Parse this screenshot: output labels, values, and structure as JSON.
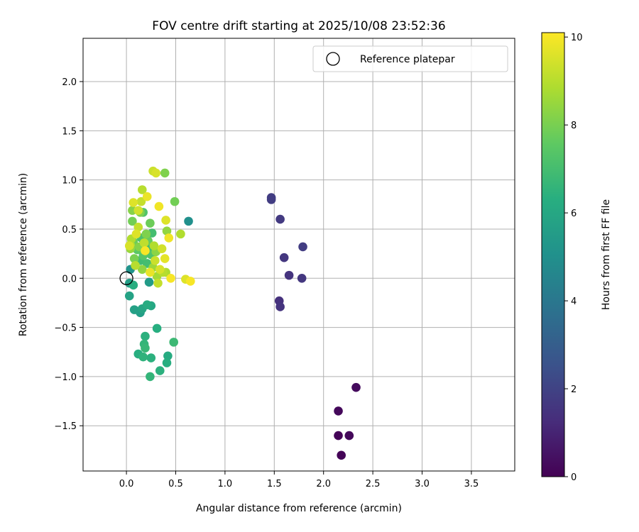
{
  "chart_data": {
    "type": "scatter",
    "title": "FOV centre drift starting at 2025/10/08 23:52:36",
    "xlabel": "Angular distance from reference (arcmin)",
    "ylabel": "Rotation from reference (arcmin)",
    "xlim": [
      -0.44,
      3.94
    ],
    "ylim": [
      -1.96,
      2.44
    ],
    "xticks": [
      0.0,
      0.5,
      1.0,
      1.5,
      2.0,
      2.5,
      3.0,
      3.5
    ],
    "xtick_labels": [
      "0.0",
      "0.5",
      "1.0",
      "1.5",
      "2.0",
      "2.5",
      "3.0",
      "3.5"
    ],
    "yticks": [
      -1.5,
      -1.0,
      -0.5,
      0.0,
      0.5,
      1.0,
      1.5,
      2.0
    ],
    "ytick_labels": [
      "−1.5",
      "−1.0",
      "−0.5",
      "0.0",
      "0.5",
      "1.0",
      "1.5",
      "2.0"
    ],
    "grid": true,
    "legend": {
      "label": "Reference platepar",
      "location": "top-right"
    },
    "reference_point": {
      "x": 0.0,
      "y": 0.0
    },
    "colorbar": {
      "label": "Hours from first FF file",
      "colormap": "viridis",
      "range": [
        0,
        10.1
      ],
      "ticks": [
        0,
        2,
        4,
        6,
        8,
        10
      ],
      "tick_labels": [
        "0",
        "2",
        "4",
        "6",
        "8",
        "10"
      ]
    },
    "points": [
      {
        "x": 2.33,
        "y": -1.11,
        "h": 0.3
      },
      {
        "x": 2.15,
        "y": -1.35,
        "h": 0.2
      },
      {
        "x": 2.15,
        "y": -1.6,
        "h": 0.1
      },
      {
        "x": 2.26,
        "y": -1.6,
        "h": 0.2
      },
      {
        "x": 2.18,
        "y": -1.8,
        "h": 0.1
      },
      {
        "x": 1.47,
        "y": 0.82,
        "h": 1.8
      },
      {
        "x": 1.47,
        "y": 0.8,
        "h": 1.8
      },
      {
        "x": 1.56,
        "y": 0.6,
        "h": 1.7
      },
      {
        "x": 1.6,
        "y": 0.21,
        "h": 1.6
      },
      {
        "x": 1.79,
        "y": 0.32,
        "h": 1.8
      },
      {
        "x": 1.65,
        "y": 0.03,
        "h": 1.5
      },
      {
        "x": 1.78,
        "y": 0.0,
        "h": 1.6
      },
      {
        "x": 1.55,
        "y": -0.23,
        "h": 1.4
      },
      {
        "x": 1.56,
        "y": -0.29,
        "h": 1.5
      },
      {
        "x": 0.63,
        "y": 0.58,
        "h": 5.0
      },
      {
        "x": 0.04,
        "y": 0.09,
        "h": 5.2
      },
      {
        "x": 0.03,
        "y": -0.05,
        "h": 5.6
      },
      {
        "x": 0.03,
        "y": -0.18,
        "h": 5.8
      },
      {
        "x": 0.08,
        "y": -0.32,
        "h": 5.7
      },
      {
        "x": 0.14,
        "y": -0.35,
        "h": 5.6
      },
      {
        "x": 0.16,
        "y": -0.31,
        "h": 5.9
      },
      {
        "x": 0.21,
        "y": -0.27,
        "h": 6.2
      },
      {
        "x": 0.25,
        "y": -0.28,
        "h": 6.0
      },
      {
        "x": 0.23,
        "y": -0.04,
        "h": 5.5
      },
      {
        "x": 0.07,
        "y": -0.07,
        "h": 6.3
      },
      {
        "x": 0.31,
        "y": -0.51,
        "h": 6.3
      },
      {
        "x": 0.19,
        "y": -0.59,
        "h": 6.4
      },
      {
        "x": 0.18,
        "y": -0.67,
        "h": 6.6
      },
      {
        "x": 0.19,
        "y": -0.71,
        "h": 6.7
      },
      {
        "x": 0.48,
        "y": -0.65,
        "h": 6.8
      },
      {
        "x": 0.12,
        "y": -0.77,
        "h": 6.3
      },
      {
        "x": 0.17,
        "y": -0.8,
        "h": 6.5
      },
      {
        "x": 0.25,
        "y": -0.81,
        "h": 6.4
      },
      {
        "x": 0.42,
        "y": -0.79,
        "h": 6.2
      },
      {
        "x": 0.41,
        "y": -0.86,
        "h": 6.3
      },
      {
        "x": 0.34,
        "y": -0.94,
        "h": 6.4
      },
      {
        "x": 0.24,
        "y": -1.0,
        "h": 6.6
      },
      {
        "x": 0.04,
        "y": 0.3,
        "h": 8.5
      },
      {
        "x": 0.03,
        "y": 0.33,
        "h": 9.5
      },
      {
        "x": 0.05,
        "y": 0.4,
        "h": 8.9
      },
      {
        "x": 0.07,
        "y": 0.37,
        "h": 7.8
      },
      {
        "x": 0.08,
        "y": 0.2,
        "h": 8.0
      },
      {
        "x": 0.09,
        "y": 0.13,
        "h": 9.0
      },
      {
        "x": 0.1,
        "y": 0.45,
        "h": 9.6
      },
      {
        "x": 0.11,
        "y": 0.29,
        "h": 7.5
      },
      {
        "x": 0.12,
        "y": 0.52,
        "h": 9.2
      },
      {
        "x": 0.13,
        "y": 0.32,
        "h": 8.2
      },
      {
        "x": 0.14,
        "y": 0.18,
        "h": 6.9
      },
      {
        "x": 0.15,
        "y": 0.41,
        "h": 7.2
      },
      {
        "x": 0.16,
        "y": 0.09,
        "h": 8.4
      },
      {
        "x": 0.17,
        "y": 0.23,
        "h": 7.4
      },
      {
        "x": 0.18,
        "y": 0.36,
        "h": 9.1
      },
      {
        "x": 0.19,
        "y": 0.28,
        "h": 10.0
      },
      {
        "x": 0.2,
        "y": 0.45,
        "h": 8.1
      },
      {
        "x": 0.21,
        "y": 0.15,
        "h": 7.0
      },
      {
        "x": 0.22,
        "y": 0.38,
        "h": 7.7
      },
      {
        "x": 0.23,
        "y": 0.3,
        "h": 6.9
      },
      {
        "x": 0.24,
        "y": 0.06,
        "h": 9.8
      },
      {
        "x": 0.25,
        "y": 0.24,
        "h": 7.3
      },
      {
        "x": 0.26,
        "y": 0.46,
        "h": 7.0
      },
      {
        "x": 0.27,
        "y": 0.11,
        "h": 8.6
      },
      {
        "x": 0.28,
        "y": 0.33,
        "h": 8.9
      },
      {
        "x": 0.29,
        "y": 0.18,
        "h": 9.3
      },
      {
        "x": 0.3,
        "y": 0.27,
        "h": 8.3
      },
      {
        "x": 0.31,
        "y": 0.02,
        "h": 8.7
      },
      {
        "x": 0.32,
        "y": -0.05,
        "h": 9.2
      },
      {
        "x": 0.34,
        "y": 0.09,
        "h": 9.5
      },
      {
        "x": 0.36,
        "y": 0.3,
        "h": 9.4
      },
      {
        "x": 0.37,
        "y": 0.06,
        "h": 9.0
      },
      {
        "x": 0.39,
        "y": 0.2,
        "h": 9.7
      },
      {
        "x": 0.4,
        "y": 0.06,
        "h": 8.8
      },
      {
        "x": 0.43,
        "y": 0.41,
        "h": 9.9
      },
      {
        "x": 0.45,
        "y": 0.0,
        "h": 10.0
      },
      {
        "x": 0.06,
        "y": 0.58,
        "h": 7.9
      },
      {
        "x": 0.06,
        "y": 0.69,
        "h": 8.2
      },
      {
        "x": 0.07,
        "y": 0.77,
        "h": 9.6
      },
      {
        "x": 0.12,
        "y": 0.69,
        "h": 9.4
      },
      {
        "x": 0.14,
        "y": 0.67,
        "h": 8.1
      },
      {
        "x": 0.15,
        "y": 0.78,
        "h": 9.2
      },
      {
        "x": 0.16,
        "y": 0.9,
        "h": 9.0
      },
      {
        "x": 0.17,
        "y": 0.67,
        "h": 7.3
      },
      {
        "x": 0.21,
        "y": 0.83,
        "h": 9.8
      },
      {
        "x": 0.24,
        "y": 0.56,
        "h": 7.8
      },
      {
        "x": 0.27,
        "y": 1.09,
        "h": 9.3
      },
      {
        "x": 0.3,
        "y": 1.07,
        "h": 9.5
      },
      {
        "x": 0.39,
        "y": 1.07,
        "h": 8.1
      },
      {
        "x": 0.33,
        "y": 0.73,
        "h": 9.9
      },
      {
        "x": 0.4,
        "y": 0.59,
        "h": 9.6
      },
      {
        "x": 0.41,
        "y": 0.48,
        "h": 8.4
      },
      {
        "x": 0.49,
        "y": 0.78,
        "h": 7.9
      },
      {
        "x": 0.55,
        "y": 0.45,
        "h": 8.9
      },
      {
        "x": 0.6,
        "y": -0.01,
        "h": 9.6
      },
      {
        "x": 0.65,
        "y": -0.03,
        "h": 10.0
      },
      {
        "x": 0.04,
        "y": 0.34,
        "h": 8.9
      }
    ]
  }
}
